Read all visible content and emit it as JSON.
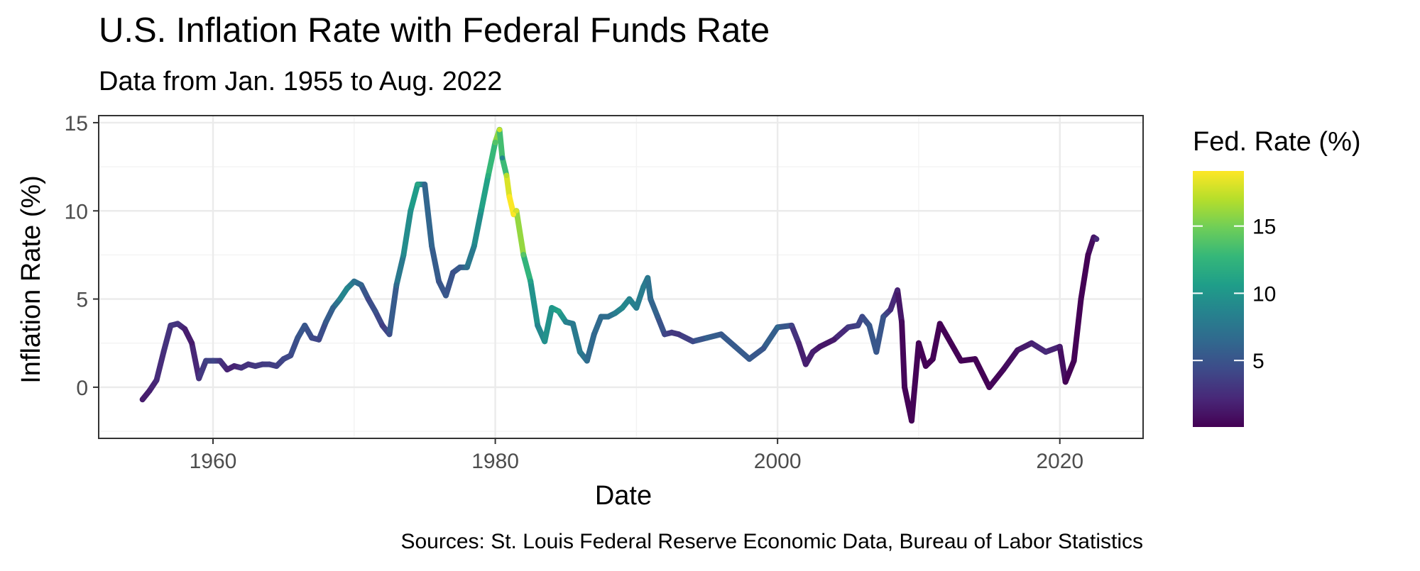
{
  "chart_data": {
    "type": "line",
    "title": "U.S. Inflation Rate with Federal Funds Rate",
    "subtitle": "Data from Jan. 1955 to Aug. 2022",
    "xlabel": "Date",
    "ylabel": "Inflation Rate (%)",
    "caption": "Sources: St. Louis Federal Reserve Economic Data, Bureau of Labor Statistics",
    "xlim": [
      1951.9,
      2025.9
    ],
    "ylim": [
      -2.9,
      15.4
    ],
    "x_ticks": [
      1960,
      1980,
      2000,
      2020
    ],
    "x_tick_labels": [
      "1960",
      "1980",
      "2000",
      "2020"
    ],
    "y_ticks": [
      0,
      5,
      10,
      15
    ],
    "y_tick_labels": [
      "0",
      "5",
      "10",
      "15"
    ],
    "grid": true,
    "legend": {
      "title": "Fed. Rate (%)",
      "position": "right",
      "ticks": [
        5,
        10,
        15
      ],
      "tick_labels": [
        "5",
        "10",
        "15"
      ],
      "range": [
        0.05,
        19.1
      ],
      "colors": [
        "#440154",
        "#482878",
        "#3e4a89",
        "#31688e",
        "#26828e",
        "#1f9e89",
        "#35b779",
        "#6ece58",
        "#b5de2b",
        "#fde725"
      ]
    },
    "series": [
      {
        "x": [
          1955.0,
          1955.5,
          1956.0,
          1956.5,
          1957.0,
          1957.5,
          1958.0,
          1958.5,
          1959.0,
          1959.5,
          1960.0,
          1960.5,
          1961.0,
          1961.5,
          1962.0,
          1962.5,
          1963.0,
          1963.5,
          1964.0,
          1964.5,
          1965.0,
          1965.5,
          1966.0,
          1966.5,
          1967.0,
          1967.5,
          1968.0,
          1968.5,
          1969.0,
          1969.5,
          1970.0,
          1970.5,
          1971.0,
          1971.5,
          1972.0,
          1972.5,
          1973.0,
          1973.5,
          1974.0,
          1974.5,
          1975.0,
          1975.5,
          1976.0,
          1976.5,
          1977.0,
          1977.5,
          1978.0,
          1978.5,
          1979.0,
          1979.5,
          1980.0,
          1980.3,
          1980.5,
          1980.8,
          1981.0,
          1981.3,
          1981.5,
          1982.0,
          1982.5,
          1983.0,
          1983.5,
          1984.0,
          1984.5,
          1985.0,
          1985.5,
          1986.0,
          1986.5,
          1987.0,
          1987.5,
          1988.0,
          1988.5,
          1989.0,
          1989.5,
          1990.0,
          1990.5,
          1990.8,
          1991.0,
          1991.5,
          1992.0,
          1992.5,
          1993.0,
          1994.0,
          1995.0,
          1996.0,
          1997.0,
          1998.0,
          1999.0,
          2000.0,
          2001.0,
          2001.5,
          2002.0,
          2002.5,
          2003.0,
          2004.0,
          2005.0,
          2005.7,
          2006.0,
          2006.5,
          2007.0,
          2007.5,
          2008.0,
          2008.5,
          2008.8,
          2009.0,
          2009.5,
          2010.0,
          2010.5,
          2011.0,
          2011.5,
          2012.0,
          2013.0,
          2014.0,
          2015.0,
          2016.0,
          2017.0,
          2018.0,
          2019.0,
          2020.0,
          2020.4,
          2021.0,
          2021.5,
          2022.0,
          2022.4,
          2022.6
        ],
        "y": [
          -0.7,
          -0.2,
          0.4,
          2.0,
          3.5,
          3.6,
          3.3,
          2.5,
          0.5,
          1.5,
          1.5,
          1.5,
          1.0,
          1.2,
          1.1,
          1.3,
          1.2,
          1.3,
          1.3,
          1.2,
          1.6,
          1.8,
          2.8,
          3.5,
          2.8,
          2.7,
          3.7,
          4.5,
          5.0,
          5.6,
          6.0,
          5.8,
          5.0,
          4.3,
          3.5,
          3.0,
          5.8,
          7.5,
          10.0,
          11.5,
          11.5,
          8.0,
          6.0,
          5.2,
          6.5,
          6.8,
          6.8,
          8.0,
          10.0,
          12.0,
          13.9,
          14.6,
          13.0,
          12.0,
          10.8,
          9.8,
          10.0,
          7.5,
          6.0,
          3.5,
          2.6,
          4.5,
          4.3,
          3.7,
          3.6,
          2.0,
          1.5,
          3.0,
          4.0,
          4.0,
          4.2,
          4.5,
          5.0,
          4.5,
          5.7,
          6.2,
          5.0,
          4.0,
          3.0,
          3.1,
          3.0,
          2.6,
          2.8,
          3.0,
          2.3,
          1.6,
          2.2,
          3.4,
          3.5,
          2.5,
          1.3,
          2.0,
          2.3,
          2.7,
          3.4,
          3.5,
          4.0,
          3.5,
          2.0,
          4.0,
          4.4,
          5.5,
          3.7,
          0.0,
          -1.9,
          2.5,
          1.2,
          1.6,
          3.6,
          2.9,
          1.5,
          1.6,
          0.0,
          1.0,
          2.1,
          2.5,
          2.0,
          2.3,
          0.3,
          1.5,
          5.0,
          7.5,
          8.5,
          8.4
        ],
        "color_values": [
          1.5,
          1.7,
          2.3,
          2.6,
          3.1,
          3.0,
          1.7,
          1.4,
          2.8,
          3.7,
          4.0,
          3.0,
          1.9,
          1.9,
          2.8,
          2.8,
          3.2,
          3.3,
          3.5,
          3.5,
          4.1,
          4.2,
          5.0,
          5.2,
          4.2,
          3.9,
          5.3,
          6.0,
          8.5,
          9.0,
          7.2,
          6.2,
          4.1,
          5.0,
          3.5,
          4.4,
          6.6,
          9.0,
          9.5,
          11.5,
          6.3,
          6.2,
          4.9,
          5.3,
          4.7,
          5.5,
          7.0,
          8.5,
          10.2,
          11.8,
          13.8,
          17.6,
          9.0,
          17.0,
          19.1,
          19.0,
          18.0,
          14.0,
          11.0,
          8.6,
          9.5,
          10.0,
          11.3,
          8.4,
          7.8,
          8.0,
          6.8,
          6.4,
          6.7,
          6.8,
          8.0,
          9.1,
          8.6,
          8.2,
          8.0,
          7.8,
          6.5,
          5.8,
          4.0,
          3.2,
          3.0,
          4.2,
          5.9,
          5.3,
          5.5,
          5.4,
          5.0,
          6.5,
          3.9,
          1.8,
          1.7,
          1.7,
          1.2,
          1.3,
          3.2,
          3.8,
          4.3,
          5.2,
          5.2,
          5.0,
          2.5,
          2.0,
          0.5,
          0.15,
          0.15,
          0.15,
          0.15,
          0.1,
          0.1,
          0.1,
          0.1,
          0.1,
          0.15,
          0.4,
          1.0,
          1.8,
          2.4,
          1.5,
          0.1,
          0.1,
          0.1,
          0.1,
          1.2,
          2.3
        ]
      }
    ]
  }
}
